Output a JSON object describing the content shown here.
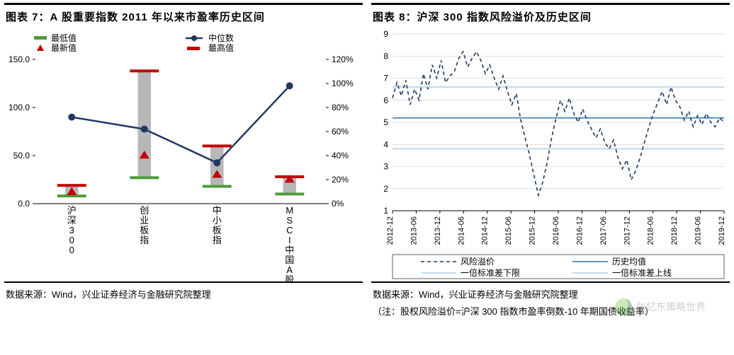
{
  "left": {
    "title": "图表 7：A 股重要指数 2011 年以来市盈率历史区间",
    "source": "数据来源：Wind，兴业证券经济与金融研究院整理",
    "legend": [
      {
        "label": "最低值",
        "kind": "bar",
        "color": "#4f9b3a"
      },
      {
        "label": "最新值",
        "kind": "tri",
        "color": "#c00000"
      },
      {
        "label": "中位数",
        "kind": "line",
        "color": "#1f3864"
      },
      {
        "label": "最高值",
        "kind": "bar",
        "color": "#c00000"
      }
    ],
    "yLeft": {
      "min": 0,
      "max": 150,
      "step": 50,
      "fmt": "num"
    },
    "yRight": {
      "min": 0,
      "max": 1.2,
      "step": 0.2,
      "fmt": "pct"
    },
    "categories": [
      "沪深300",
      "创业板指",
      "中小板指",
      "MSCI中国A股在岸实时"
    ],
    "series": {
      "low": [
        8,
        27,
        18,
        10
      ],
      "high": [
        19,
        138,
        60,
        28
      ],
      "latest": [
        12,
        50,
        30,
        25
      ],
      "median": [
        72,
        62,
        34,
        98
      ]
    },
    "style": {
      "bg": "#ffffff",
      "gridColor": "#bfbfbf",
      "barGray": "#b7b7b7",
      "barGrayW": 0.045,
      "tickRed": "#c00000",
      "tickGreen": "#4f9b3a",
      "tickW": 0.1,
      "tickH": 4,
      "triColor": "#c00000",
      "triR": 7,
      "lineColor": "#1f3864",
      "lineW": 2.5,
      "markerR": 5,
      "axisFont": 12,
      "catFont": 13
    }
  },
  "right": {
    "title": "图表 8：沪深 300 指数风险溢价及历史区间",
    "source": "数据来源：Wind，兴业证券经济与金融研究院整理",
    "note": "（注：股权风险溢价=沪深 300 指数市盈率倒数-10 年期国债收益率）",
    "y": {
      "min": 1,
      "max": 9,
      "step": 1
    },
    "xTicks": [
      "2012-12",
      "2013-06",
      "2013-12",
      "2014-06",
      "2014-12",
      "2015-06",
      "2015-12",
      "2016-06",
      "2016-12",
      "2017-06",
      "2017-12",
      "2018-06",
      "2018-12",
      "2019-06",
      "2019-12"
    ],
    "hlines": {
      "mean": {
        "value": 5.2,
        "color": "#2e75b6",
        "w": 1.5,
        "label": "历史均值"
      },
      "lower": {
        "value": 3.8,
        "color": "#9dc3e6",
        "w": 1.2,
        "label": "一倍标准差下限"
      },
      "upper": {
        "value": 6.6,
        "color": "#9dc3e6",
        "w": 1.2,
        "label": "一倍标准差上线"
      }
    },
    "premium": {
      "label": "风险溢价",
      "color": "#1f3864",
      "dash": "5,4",
      "w": 1.6,
      "values": [
        6.1,
        6.8,
        6.2,
        6.9,
        5.8,
        6.5,
        6.0,
        7.2,
        6.5,
        7.6,
        7.0,
        7.8,
        6.8,
        7.1,
        7.3,
        7.9,
        8.2,
        7.5,
        7.9,
        8.2,
        7.8,
        7.2,
        7.6,
        7.0,
        6.5,
        7.1,
        6.4,
        5.8,
        6.3,
        5.1,
        4.3,
        3.5,
        2.6,
        1.7,
        2.3,
        3.2,
        4.3,
        5.2,
        6.0,
        5.5,
        6.1,
        5.4,
        5.0,
        5.6,
        5.1,
        4.7,
        4.3,
        4.7,
        4.1,
        3.8,
        4.2,
        3.4,
        2.9,
        3.3,
        2.4,
        2.8,
        3.4,
        4.1,
        4.8,
        5.4,
        5.9,
        6.4,
        5.8,
        6.6,
        6.0,
        5.7,
        5.1,
        5.5,
        4.8,
        5.3,
        4.9,
        5.4,
        5.0,
        4.8,
        5.2,
        5.0
      ]
    },
    "style": {
      "bg": "#ffffff",
      "gridColor": "#bfbfbf",
      "axisFont": 12,
      "xlabFont": 11,
      "legendFont": 12
    }
  },
  "watermark": "张忆东策略世界"
}
